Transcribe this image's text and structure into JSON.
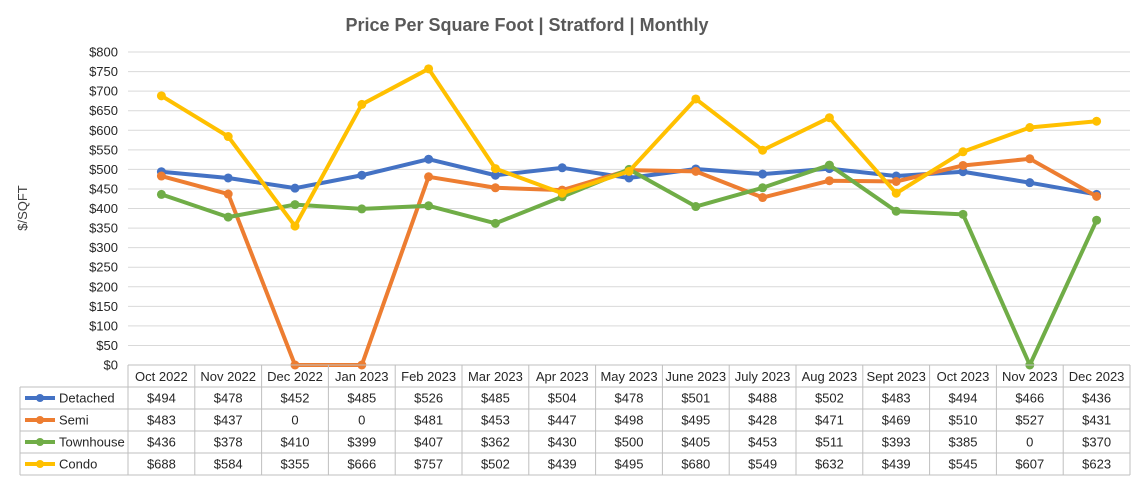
{
  "chart_data": {
    "type": "line",
    "title": "Price Per Square Foot | Stratford | Monthly",
    "ylabel": "$/SQFT",
    "xlabel": "",
    "ylim": [
      0,
      800
    ],
    "ytick_step": 50,
    "y_tick_labels": [
      "$0",
      "$50",
      "$100",
      "$150",
      "$200",
      "$250",
      "$300",
      "$350",
      "$400",
      "$450",
      "$500",
      "$550",
      "$600",
      "$650",
      "$700",
      "$750",
      "$800"
    ],
    "grid": true,
    "legend": "data-table-below",
    "categories": [
      "Oct 2022",
      "Nov 2022",
      "Dec 2022",
      "Jan 2023",
      "Feb 2023",
      "Mar 2023",
      "Apr 2023",
      "May 2023",
      "June 2023",
      "July 2023",
      "Aug 2023",
      "Sept 2023",
      "Oct 2023",
      "Nov 2023",
      "Dec 2023"
    ],
    "series": [
      {
        "name": "Detached",
        "color": "#4472C4",
        "values": [
          494,
          478,
          452,
          485,
          526,
          485,
          504,
          478,
          501,
          488,
          502,
          483,
          494,
          466,
          436
        ],
        "labels": [
          "$494",
          "$478",
          "$452",
          "$485",
          "$526",
          "$485",
          "$504",
          "$478",
          "$501",
          "$488",
          "$502",
          "$483",
          "$494",
          "$466",
          "$436"
        ]
      },
      {
        "name": "Semi",
        "color": "#ED7D31",
        "values": [
          483,
          437,
          0,
          0,
          481,
          453,
          447,
          498,
          495,
          428,
          471,
          469,
          510,
          527,
          431
        ],
        "labels": [
          "$483",
          "$437",
          "0",
          "0",
          "$481",
          "$453",
          "$447",
          "$498",
          "$495",
          "$428",
          "$471",
          "$469",
          "$510",
          "$527",
          "$431"
        ]
      },
      {
        "name": "Townhouse",
        "color": "#70AD47",
        "values": [
          436,
          378,
          410,
          399,
          407,
          362,
          430,
          500,
          405,
          453,
          511,
          393,
          385,
          0,
          370
        ],
        "labels": [
          "$436",
          "$378",
          "$410",
          "$399",
          "$407",
          "$362",
          "$430",
          "$500",
          "$405",
          "$453",
          "$511",
          "$393",
          "$385",
          "0",
          "$370"
        ]
      },
      {
        "name": "Condo",
        "color": "#FFC000",
        "values": [
          688,
          584,
          355,
          666,
          757,
          502,
          439,
          495,
          680,
          549,
          632,
          439,
          545,
          607,
          623
        ],
        "labels": [
          "$688",
          "$584",
          "$355",
          "$666",
          "$757",
          "$502",
          "$439",
          "$495",
          "$680",
          "$549",
          "$632",
          "$439",
          "$545",
          "$607",
          "$623"
        ]
      }
    ]
  },
  "colors": {
    "title": "#595959",
    "axis_text": "#262626",
    "grid": "#D9D9D9",
    "table_border": "#BFBFBF"
  }
}
